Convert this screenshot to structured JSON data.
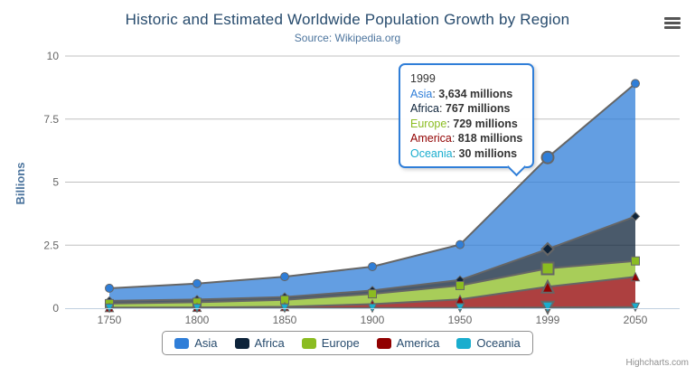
{
  "header": {
    "title": "Historic and Estimated Worldwide Population Growth by Region",
    "subtitle": "Source: Wikipedia.org"
  },
  "colors": {
    "asia": "#2f7ed8",
    "africa": "#0d233a",
    "europe": "#8bbc21",
    "america": "#910000",
    "oceania": "#1aadce",
    "series_line": "#666666",
    "grid": "#c0c0c0",
    "axis_line": "#c0d0e0",
    "title_text": "#274b6d",
    "subtitle_text": "#4d759e",
    "axis_label": "#666666",
    "axis_title": "#4d759e",
    "legend_text": "#274b6d",
    "legend_border": "#909090",
    "tooltip_border": "#2f7ed8",
    "credit_text": "#909090"
  },
  "icons": {
    "context_menu": "hamburger-icon"
  },
  "chart_data": {
    "type": "area",
    "stacking": "normal",
    "unit": "millions",
    "title": "Historic and Estimated Worldwide Population Growth by Region",
    "subtitle": "Source: Wikipedia.org",
    "categories": [
      "1750",
      "1800",
      "1850",
      "1900",
      "1950",
      "1999",
      "2050"
    ],
    "series": [
      {
        "name": "Asia",
        "color": "#2f7ed8",
        "marker": "circle",
        "values": [
          502,
          635,
          809,
          947,
          1402,
          3634,
          5268
        ]
      },
      {
        "name": "Africa",
        "color": "#0d233a",
        "marker": "diamond",
        "values": [
          106,
          107,
          111,
          133,
          221,
          767,
          1766
        ]
      },
      {
        "name": "Europe",
        "color": "#8bbc21",
        "marker": "square",
        "values": [
          163,
          203,
          276,
          408,
          547,
          729,
          628
        ]
      },
      {
        "name": "America",
        "color": "#910000",
        "marker": "triangle",
        "values": [
          18,
          31,
          54,
          156,
          339,
          818,
          1201
        ]
      },
      {
        "name": "Oceania",
        "color": "#1aadce",
        "marker": "triangle-down",
        "values": [
          2,
          2,
          2,
          6,
          13,
          30,
          46
        ]
      }
    ],
    "yaxis": {
      "title": "Billions",
      "ticks": [
        0,
        2.5,
        5,
        7.5,
        10
      ],
      "tick_labels": [
        "0",
        "2.5",
        "5",
        "7.5",
        "10"
      ],
      "max": 10
    },
    "xaxis": {
      "label_color": "#666666"
    },
    "grid": true,
    "legend_position": "bottom",
    "hovered_category_index": 5
  },
  "tooltip": {
    "header": "1999",
    "rows": [
      {
        "name": "Asia",
        "color": "#2f7ed8",
        "value": "3,634 millions"
      },
      {
        "name": "Africa",
        "color": "#0d233a",
        "value": "767 millions"
      },
      {
        "name": "Europe",
        "color": "#8bbc21",
        "value": "729 millions"
      },
      {
        "name": "America",
        "color": "#910000",
        "value": "818 millions"
      },
      {
        "name": "Oceania",
        "color": "#1aadce",
        "value": "30 millions"
      }
    ]
  },
  "credit": {
    "label": "Highcharts.com"
  }
}
